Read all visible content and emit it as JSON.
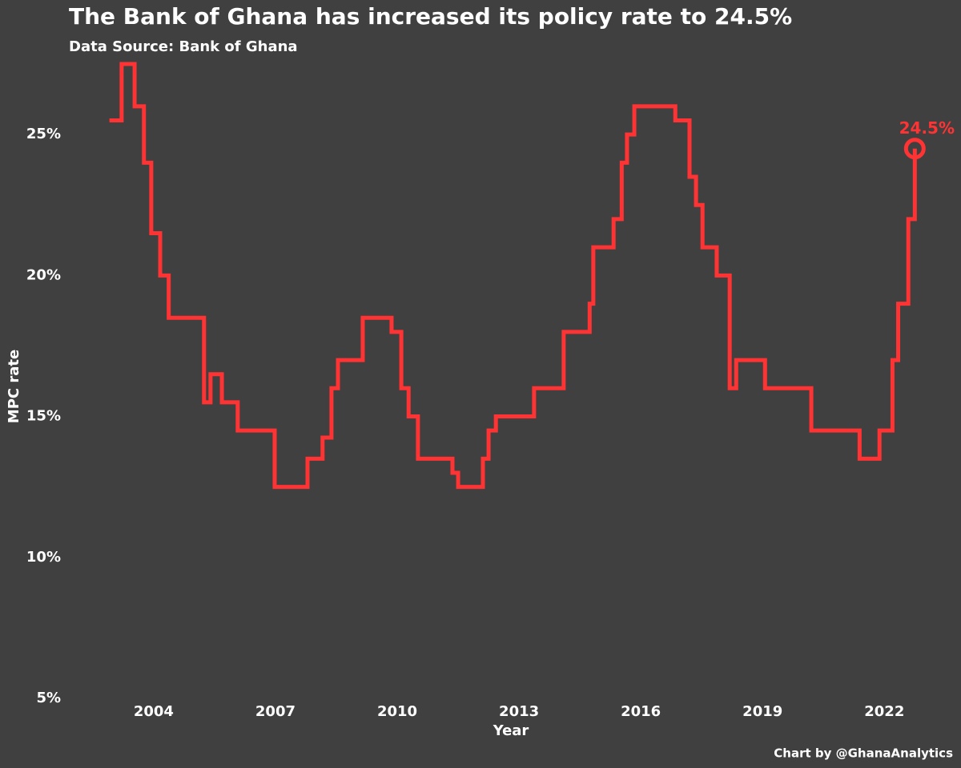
{
  "chart_data": {
    "type": "step",
    "title": "The Bank of Ghana has increased its policy rate to 24.5%",
    "subtitle": "Data Source: Bank of Ghana",
    "x_label": "Year",
    "y_label": "MPC rate",
    "footer": "Chart by @GhanaAnalytics",
    "highlight_label": "24.5%",
    "color": "#ff3333",
    "background": "#404040",
    "grid": false,
    "x": [
      2002.91,
      2003.21,
      2003.53,
      2003.76,
      2003.94,
      2004.16,
      2004.37,
      2005.24,
      2005.4,
      2005.68,
      2006.07,
      2006.98,
      2007.79,
      2008.16,
      2008.38,
      2008.54,
      2009.15,
      2009.86,
      2010.1,
      2010.28,
      2010.51,
      2011.36,
      2011.5,
      2012.11,
      2012.25,
      2012.43,
      2013.37,
      2014.1,
      2014.74,
      2014.83,
      2015.33,
      2015.53,
      2015.66,
      2015.84,
      2016.85,
      2017.2,
      2017.36,
      2017.52,
      2017.87,
      2018.19,
      2018.35,
      2019.06,
      2020.2,
      2021.39,
      2021.88,
      2022.2,
      2022.34,
      2022.59,
      2022.75
    ],
    "values": [
      25.5,
      27.5,
      26,
      24,
      21.5,
      20,
      18.5,
      15.5,
      16.5,
      15.5,
      14.5,
      12.5,
      13.5,
      14.25,
      16,
      17,
      18.5,
      18,
      16,
      15,
      13.5,
      13,
      12.5,
      13.5,
      14.5,
      15,
      16,
      18,
      19,
      21,
      22,
      24,
      25,
      26,
      25.5,
      23.5,
      22.5,
      21,
      20,
      16,
      17,
      16,
      14.5,
      13.5,
      14.5,
      17,
      19,
      22,
      24.5
    ],
    "xlim": [
      2002.7,
      2023.0
    ],
    "xticks": [
      2004,
      2007,
      2010,
      2013,
      2016,
      2019,
      2022
    ],
    "ylim": [
      5,
      27.5
    ],
    "yticks": [
      {
        "value": 5,
        "label": "5%"
      },
      {
        "value": 10,
        "label": "10%"
      },
      {
        "value": 15,
        "label": "15%"
      },
      {
        "value": 20,
        "label": "20%"
      },
      {
        "value": 25,
        "label": "25%"
      }
    ]
  }
}
